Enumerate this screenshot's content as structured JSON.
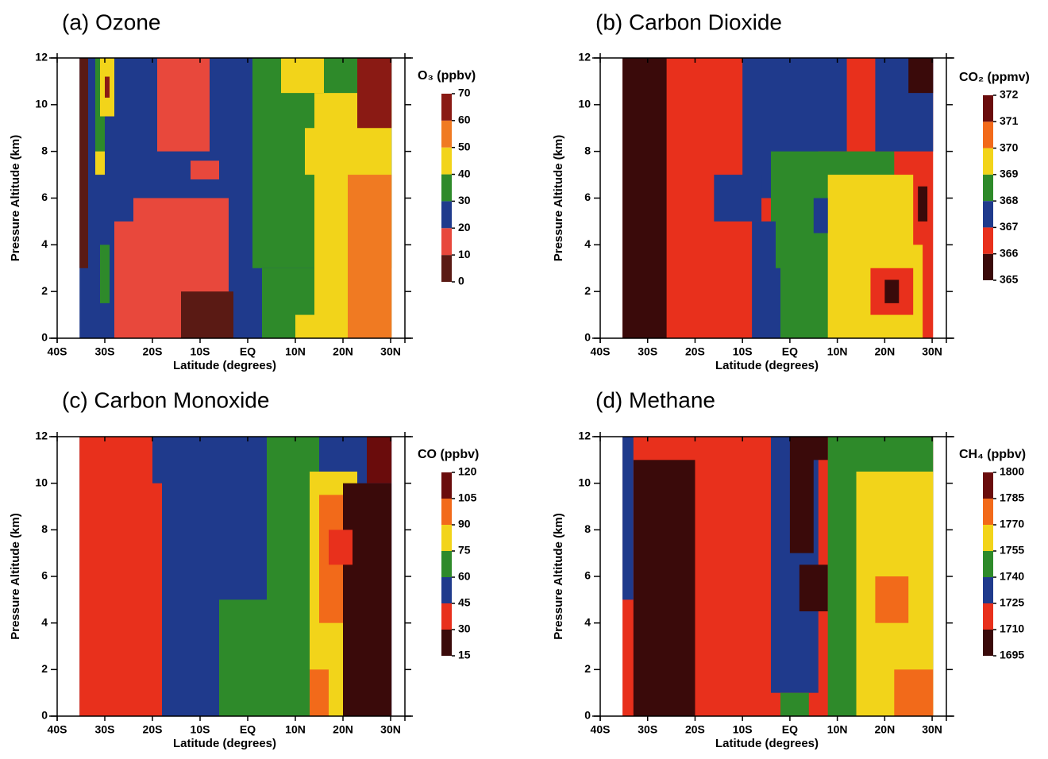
{
  "chart_data": [
    {
      "type": "contour",
      "title": "(a) Ozone",
      "xlabel": "Latitude (degrees)",
      "ylabel": "Pressure Altitude (km)",
      "xlim": [
        -40,
        33
      ],
      "xticks": [
        {
          "value": -40,
          "label": "40S"
        },
        {
          "value": -30,
          "label": "30S"
        },
        {
          "value": -20,
          "label": "20S"
        },
        {
          "value": -10,
          "label": "10S"
        },
        {
          "value": 0,
          "label": "EQ"
        },
        {
          "value": 10,
          "label": "10N"
        },
        {
          "value": 20,
          "label": "20N"
        },
        {
          "value": 30,
          "label": "30N"
        }
      ],
      "ylim": [
        0,
        12
      ],
      "yticks": [
        0,
        2,
        4,
        6,
        8,
        10,
        12
      ],
      "colorbar": {
        "label": "O₃ (ppbv)",
        "ticks": [
          0,
          10,
          20,
          30,
          40,
          50,
          60,
          70
        ],
        "colors": [
          "#5a1a14",
          "#e8483c",
          "#1f3a8c",
          "#2e8a2a",
          "#f2d41a",
          "#f07a22",
          "#8a1a14"
        ]
      }
    },
    {
      "type": "contour",
      "title": "(b) Carbon Dioxide",
      "xlabel": "Latitude (degrees)",
      "ylabel": "Pressure Altitude (km)",
      "xlim": [
        -40,
        33
      ],
      "xticks": [
        {
          "value": -40,
          "label": "40S"
        },
        {
          "value": -30,
          "label": "30S"
        },
        {
          "value": -20,
          "label": "20S"
        },
        {
          "value": -10,
          "label": "10S"
        },
        {
          "value": 0,
          "label": "EQ"
        },
        {
          "value": 10,
          "label": "10N"
        },
        {
          "value": 20,
          "label": "20N"
        },
        {
          "value": 30,
          "label": "30N"
        }
      ],
      "ylim": [
        0,
        12
      ],
      "yticks": [
        0,
        2,
        4,
        6,
        8,
        10,
        12
      ],
      "colorbar": {
        "label": "CO₂ (ppmv)",
        "ticks": [
          365,
          366,
          367,
          368,
          369,
          370,
          371,
          372
        ],
        "colors": [
          "#3a0a0a",
          "#e8301c",
          "#1f3a8c",
          "#2e8a2a",
          "#f2d41a",
          "#f26a1a",
          "#6a0c0c"
        ]
      }
    },
    {
      "type": "contour",
      "title": "(c) Carbon Monoxide",
      "xlabel": "Latitude (degrees)",
      "ylabel": "Pressure Altitude (km)",
      "xlim": [
        -40,
        33
      ],
      "xticks": [
        {
          "value": -40,
          "label": "40S"
        },
        {
          "value": -30,
          "label": "30S"
        },
        {
          "value": -20,
          "label": "20S"
        },
        {
          "value": -10,
          "label": "10S"
        },
        {
          "value": 0,
          "label": "EQ"
        },
        {
          "value": 10,
          "label": "10N"
        },
        {
          "value": 20,
          "label": "20N"
        },
        {
          "value": 30,
          "label": "30N"
        }
      ],
      "ylim": [
        0,
        12
      ],
      "yticks": [
        0,
        2,
        4,
        6,
        8,
        10,
        12
      ],
      "colorbar": {
        "label": "CO (ppbv)",
        "ticks": [
          15,
          30,
          45,
          60,
          75,
          90,
          105,
          120
        ],
        "colors": [
          "#3a0a0a",
          "#e8301c",
          "#1f3a8c",
          "#2e8a2a",
          "#f2d41a",
          "#f26a1a",
          "#6a0c0c"
        ]
      }
    },
    {
      "type": "contour",
      "title": "(d) Methane",
      "xlabel": "Latitude (degrees)",
      "ylabel": "Pressure Altitude (km)",
      "xlim": [
        -40,
        33
      ],
      "xticks": [
        {
          "value": -40,
          "label": "40S"
        },
        {
          "value": -30,
          "label": "30S"
        },
        {
          "value": -20,
          "label": "20S"
        },
        {
          "value": -10,
          "label": "10S"
        },
        {
          "value": 0,
          "label": "EQ"
        },
        {
          "value": 10,
          "label": "10N"
        },
        {
          "value": 20,
          "label": "20N"
        },
        {
          "value": 30,
          "label": "30N"
        }
      ],
      "ylim": [
        0,
        12
      ],
      "yticks": [
        0,
        2,
        4,
        6,
        8,
        10,
        12
      ],
      "colorbar": {
        "label": "CH₄ (ppbv)",
        "ticks": [
          1695,
          1710,
          1725,
          1740,
          1755,
          1770,
          1785,
          1800
        ],
        "colors": [
          "#3a0a0a",
          "#e8301c",
          "#1f3a8c",
          "#2e8a2a",
          "#f2d41a",
          "#f26a1a",
          "#6a0c0c"
        ]
      }
    }
  ]
}
